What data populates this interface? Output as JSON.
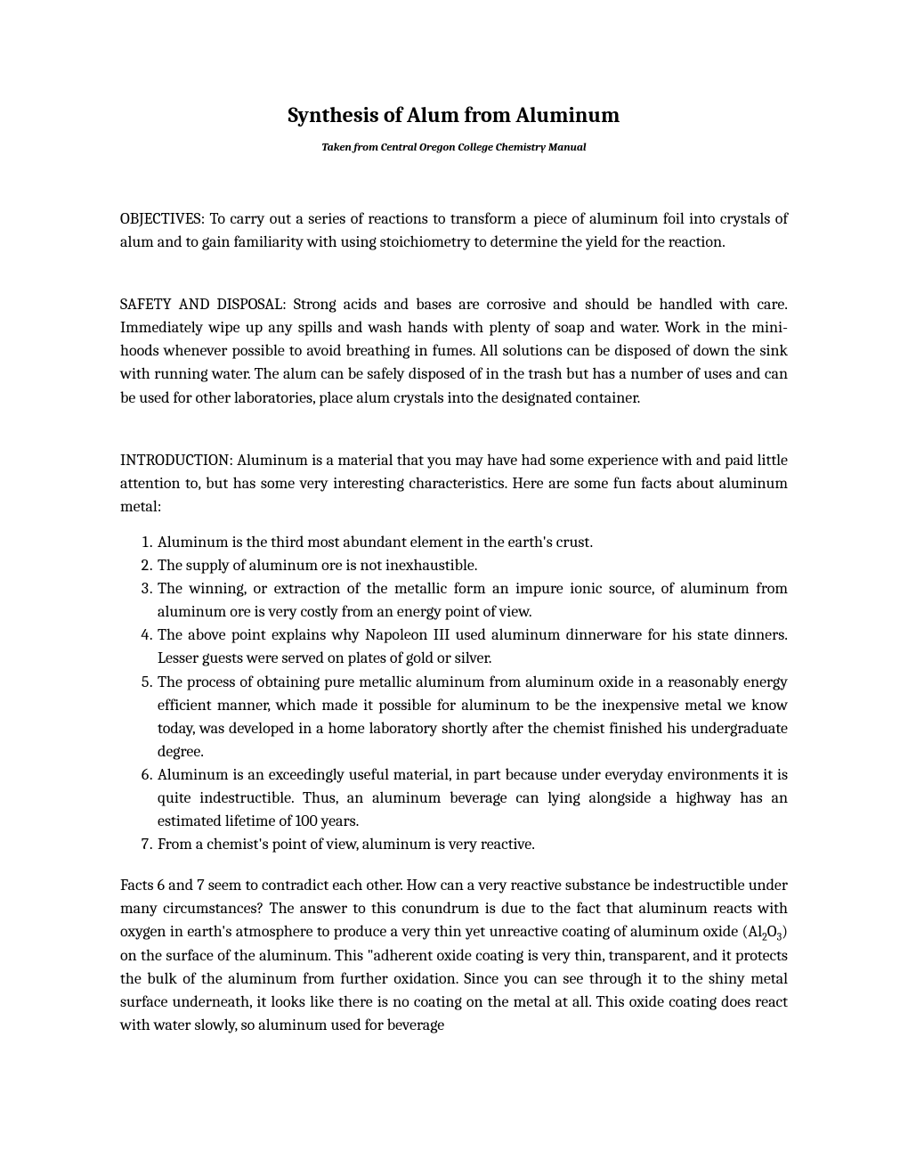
{
  "title": "Synthesis of Alum from Aluminum",
  "subtitle": "Taken from Central Oregon College Chemistry Manual",
  "objectives": {
    "heading": "OBJECTIVES:",
    "text": " To carry out a series of reactions to transform a piece of aluminum foil into crystals of alum and to gain familiarity with using stoichiometry to determine the yield for the reaction."
  },
  "safety": {
    "heading": "SAFETY AND DISPOSAL:",
    "text": " Strong acids and bases are corrosive and should be handled with care. Immediately wipe up any spills and wash hands with plenty of soap and water. Work in the mini-hoods whenever possible to avoid breathing in fumes. All solutions can be disposed of down the sink with running water. The alum can be safely disposed of in the trash but has a number of uses and can be used for other laboratories, place alum crystals into the designated container."
  },
  "introduction": {
    "heading": "INTRODUCTION:",
    "text": " Aluminum is a material that you may have had some experience with and paid little attention to, but has some very interesting characteristics.  Here are some fun facts about aluminum metal:"
  },
  "facts": [
    "Aluminum is the third most abundant element in the earth's crust.",
    "The supply of aluminum ore is not inexhaustible.",
    "The winning, or extraction of the metallic form an impure ionic source, of aluminum from aluminum ore is very costly from an energy point of view.",
    "The above point explains why Napoleon III used aluminum dinnerware for his state dinners. Lesser guests were served on plates of gold or silver.",
    "The process of obtaining pure metallic aluminum from aluminum oxide in a reasonably energy efficient manner, which made it possible for aluminum to be the inexpensive metal we know today, was developed in a home laboratory shortly after the chemist finished his undergraduate degree.",
    "Aluminum is an exceedingly useful material, in part because under everyday environments it is quite indestructible.  Thus, an aluminum beverage can lying alongside a highway has an estimated lifetime of 100 years.",
    "From a chemist's point of view, aluminum is very reactive."
  ],
  "closing_before_formula": "Facts 6 and 7 seem to contradict each other.  How can a very reactive substance be indestructible under many circumstances?  The answer to this conundrum is due to the fact that aluminum reacts with oxygen in earth's atmosphere to produce a very thin yet unreactive coating of aluminum oxide (Al",
  "formula_sub1": "2",
  "formula_mid": "O",
  "formula_sub2": "3",
  "closing_after_formula": ") on the surface of the aluminum.  This \"adherent oxide coating is very thin, transparent, and it protects the bulk of the aluminum from further oxidation.  Since you can see through it to the shiny metal surface underneath, it looks like there is no coating on the metal at all.  This oxide coating does react with water slowly, so aluminum used for beverage"
}
